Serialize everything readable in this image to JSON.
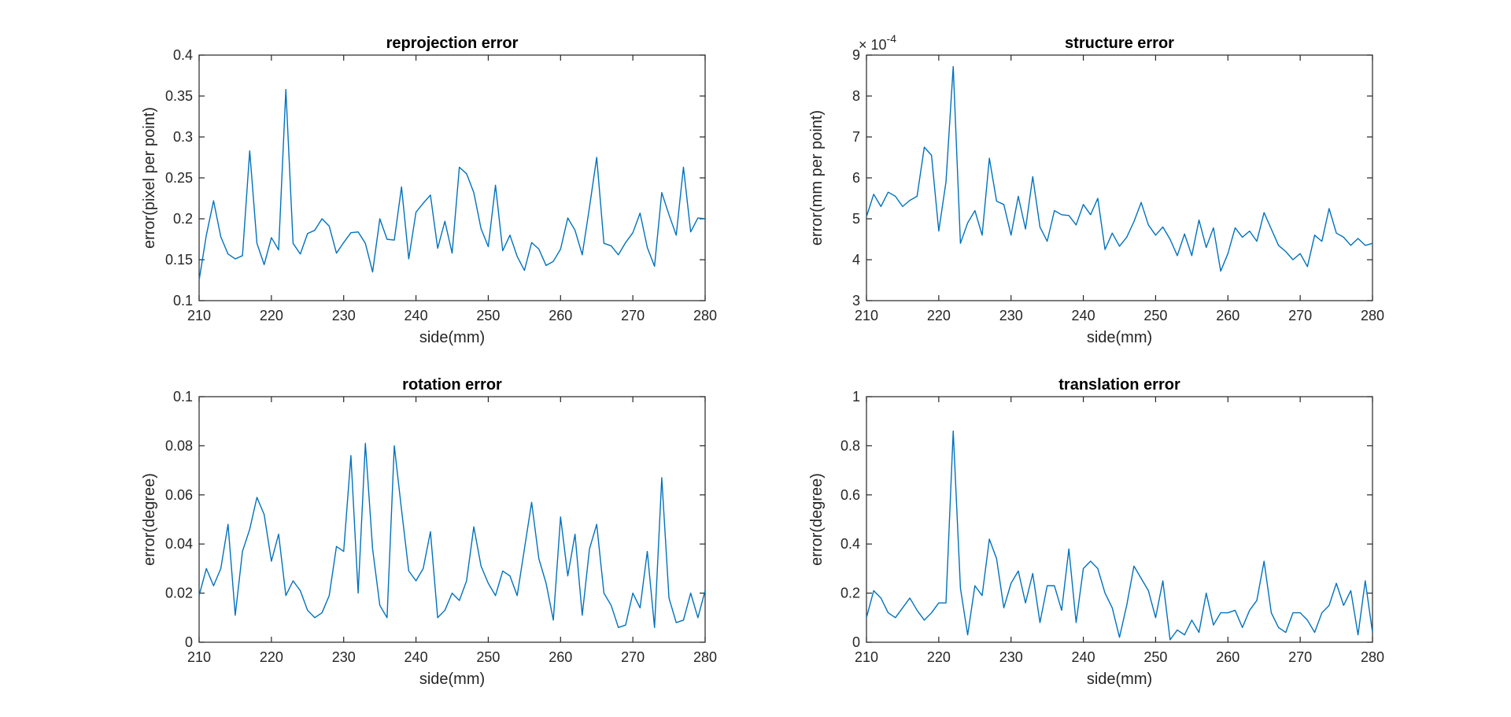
{
  "chart_data": [
    {
      "type": "line",
      "title": "reprojection error",
      "xlabel": "side(mm)",
      "ylabel": "error(pixel per point)",
      "xlim": [
        210,
        280
      ],
      "ylim": [
        0.1,
        0.4
      ],
      "xticks": [
        "210",
        "220",
        "230",
        "240",
        "250",
        "260",
        "270",
        "280"
      ],
      "yticks": [
        "0.1",
        "0.15",
        "0.2",
        "0.25",
        "0.3",
        "0.35",
        "0.4"
      ],
      "color": "#0072BD",
      "x": [
        210,
        211,
        212,
        213,
        214,
        215,
        216,
        217,
        218,
        219,
        220,
        221,
        222,
        223,
        224,
        225,
        226,
        227,
        228,
        229,
        230,
        231,
        232,
        233,
        234,
        235,
        236,
        237,
        238,
        239,
        240,
        241,
        242,
        243,
        244,
        245,
        246,
        247,
        248,
        249,
        250,
        251,
        252,
        253,
        254,
        255,
        256,
        257,
        258,
        259,
        260,
        261,
        262,
        263,
        264,
        265,
        266,
        267,
        268,
        269,
        270,
        271,
        272,
        273,
        274,
        275,
        276,
        277,
        278,
        279,
        280
      ],
      "values": [
        0.125,
        0.18,
        0.222,
        0.178,
        0.157,
        0.151,
        0.155,
        0.283,
        0.17,
        0.144,
        0.177,
        0.162,
        0.358,
        0.17,
        0.157,
        0.182,
        0.186,
        0.2,
        0.191,
        0.158,
        0.171,
        0.183,
        0.184,
        0.17,
        0.135,
        0.2,
        0.175,
        0.174,
        0.239,
        0.151,
        0.208,
        0.219,
        0.229,
        0.164,
        0.197,
        0.158,
        0.263,
        0.255,
        0.232,
        0.188,
        0.166,
        0.241,
        0.161,
        0.18,
        0.154,
        0.137,
        0.171,
        0.163,
        0.143,
        0.148,
        0.163,
        0.201,
        0.186,
        0.156,
        0.214,
        0.275,
        0.17,
        0.167,
        0.156,
        0.171,
        0.183,
        0.207,
        0.165,
        0.142,
        0.232,
        0.205,
        0.18,
        0.263,
        0.184,
        0.201,
        0.2
      ]
    },
    {
      "type": "line",
      "title": "structure error",
      "xlabel": "side(mm)",
      "ylabel": "error(mm per point)",
      "xlim": [
        210,
        280
      ],
      "ylim": [
        3,
        9
      ],
      "exponent_base": "× 10",
      "exponent_power": "-4",
      "xticks": [
        "210",
        "220",
        "230",
        "240",
        "250",
        "260",
        "270",
        "280"
      ],
      "yticks": [
        "3",
        "4",
        "5",
        "6",
        "7",
        "8",
        "9"
      ],
      "color": "#0072BD",
      "x": [
        210,
        211,
        212,
        213,
        214,
        215,
        216,
        217,
        218,
        219,
        220,
        221,
        222,
        223,
        224,
        225,
        226,
        227,
        228,
        229,
        230,
        231,
        232,
        233,
        234,
        235,
        236,
        237,
        238,
        239,
        240,
        241,
        242,
        243,
        244,
        245,
        246,
        247,
        248,
        249,
        250,
        251,
        252,
        253,
        254,
        255,
        256,
        257,
        258,
        259,
        260,
        261,
        262,
        263,
        264,
        265,
        266,
        267,
        268,
        269,
        270,
        271,
        272,
        273,
        274,
        275,
        276,
        277,
        278,
        279,
        280
      ],
      "values": [
        5.05,
        5.6,
        5.3,
        5.65,
        5.55,
        5.3,
        5.45,
        5.55,
        6.75,
        6.55,
        4.7,
        5.9,
        8.72,
        4.4,
        4.9,
        5.2,
        4.6,
        6.48,
        5.43,
        5.35,
        4.6,
        5.55,
        4.75,
        6.03,
        4.8,
        4.45,
        5.2,
        5.1,
        5.08,
        4.85,
        5.35,
        5.1,
        5.5,
        4.25,
        4.65,
        4.33,
        4.55,
        4.93,
        5.4,
        4.85,
        4.6,
        4.8,
        4.5,
        4.1,
        4.63,
        4.1,
        4.97,
        4.3,
        4.78,
        3.72,
        4.15,
        4.78,
        4.55,
        4.7,
        4.45,
        5.15,
        4.75,
        4.35,
        4.2,
        4.0,
        4.15,
        3.83,
        4.6,
        4.45,
        5.25,
        4.65,
        4.55,
        4.35,
        4.52,
        4.35,
        4.4
      ]
    },
    {
      "type": "line",
      "title": "rotation error",
      "xlabel": "side(mm)",
      "ylabel": "error(degree)",
      "xlim": [
        210,
        280
      ],
      "ylim": [
        0,
        0.1
      ],
      "xticks": [
        "210",
        "220",
        "230",
        "240",
        "250",
        "260",
        "270",
        "280"
      ],
      "yticks": [
        "0",
        "0.02",
        "0.04",
        "0.06",
        "0.08",
        "0.1"
      ],
      "color": "#0072BD",
      "x": [
        210,
        211,
        212,
        213,
        214,
        215,
        216,
        217,
        218,
        219,
        220,
        221,
        222,
        223,
        224,
        225,
        226,
        227,
        228,
        229,
        230,
        231,
        232,
        233,
        234,
        235,
        236,
        237,
        238,
        239,
        240,
        241,
        242,
        243,
        244,
        245,
        246,
        247,
        248,
        249,
        250,
        251,
        252,
        253,
        254,
        255,
        256,
        257,
        258,
        259,
        260,
        261,
        262,
        263,
        264,
        265,
        266,
        267,
        268,
        269,
        270,
        271,
        272,
        273,
        274,
        275,
        276,
        277,
        278,
        279,
        280
      ],
      "values": [
        0.019,
        0.03,
        0.023,
        0.03,
        0.048,
        0.011,
        0.037,
        0.046,
        0.059,
        0.052,
        0.033,
        0.044,
        0.019,
        0.025,
        0.021,
        0.013,
        0.01,
        0.012,
        0.019,
        0.039,
        0.037,
        0.076,
        0.02,
        0.081,
        0.038,
        0.015,
        0.01,
        0.08,
        0.054,
        0.029,
        0.025,
        0.03,
        0.045,
        0.01,
        0.013,
        0.02,
        0.017,
        0.025,
        0.047,
        0.031,
        0.024,
        0.019,
        0.029,
        0.027,
        0.019,
        0.038,
        0.057,
        0.034,
        0.024,
        0.009,
        0.051,
        0.027,
        0.044,
        0.011,
        0.038,
        0.048,
        0.02,
        0.015,
        0.006,
        0.007,
        0.02,
        0.014,
        0.037,
        0.006,
        0.067,
        0.018,
        0.008,
        0.009,
        0.02,
        0.01,
        0.021
      ]
    },
    {
      "type": "line",
      "title": "translation error",
      "xlabel": "side(mm)",
      "ylabel": "error(degree)",
      "xlim": [
        210,
        280
      ],
      "ylim": [
        0,
        1
      ],
      "xticks": [
        "210",
        "220",
        "230",
        "240",
        "250",
        "260",
        "270",
        "280"
      ],
      "yticks": [
        "0",
        "0.2",
        "0.4",
        "0.6",
        "0.8",
        "1"
      ],
      "color": "#0072BD",
      "x": [
        210,
        211,
        212,
        213,
        214,
        215,
        216,
        217,
        218,
        219,
        220,
        221,
        222,
        223,
        224,
        225,
        226,
        227,
        228,
        229,
        230,
        231,
        232,
        233,
        234,
        235,
        236,
        237,
        238,
        239,
        240,
        241,
        242,
        243,
        244,
        245,
        246,
        247,
        248,
        249,
        250,
        251,
        252,
        253,
        254,
        255,
        256,
        257,
        258,
        259,
        260,
        261,
        262,
        263,
        264,
        265,
        266,
        267,
        268,
        269,
        270,
        271,
        272,
        273,
        274,
        275,
        276,
        277,
        278,
        279,
        280
      ],
      "values": [
        0.1,
        0.21,
        0.18,
        0.12,
        0.1,
        0.14,
        0.18,
        0.13,
        0.09,
        0.12,
        0.16,
        0.16,
        0.86,
        0.22,
        0.03,
        0.23,
        0.19,
        0.42,
        0.34,
        0.14,
        0.24,
        0.29,
        0.16,
        0.28,
        0.08,
        0.23,
        0.23,
        0.13,
        0.38,
        0.08,
        0.3,
        0.33,
        0.3,
        0.2,
        0.14,
        0.02,
        0.15,
        0.31,
        0.26,
        0.21,
        0.1,
        0.25,
        0.01,
        0.05,
        0.03,
        0.09,
        0.04,
        0.2,
        0.07,
        0.12,
        0.12,
        0.13,
        0.06,
        0.13,
        0.17,
        0.33,
        0.12,
        0.06,
        0.04,
        0.12,
        0.12,
        0.09,
        0.04,
        0.12,
        0.15,
        0.24,
        0.15,
        0.21,
        0.03,
        0.25,
        0.04
      ]
    }
  ]
}
